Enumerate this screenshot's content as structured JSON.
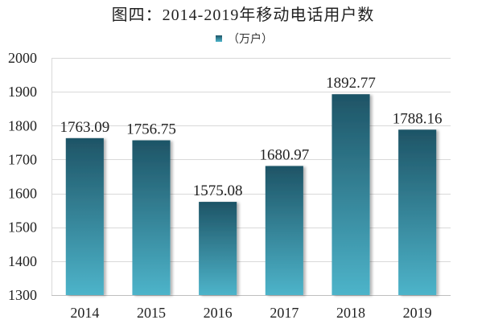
{
  "chart_data": {
    "type": "bar",
    "title": "图四：2014-2019年移动电话用户数",
    "categories": [
      "2014",
      "2015",
      "2016",
      "2017",
      "2018",
      "2019"
    ],
    "series": [
      {
        "name": "（万户）",
        "values": [
          1763.09,
          1756.75,
          1575.08,
          1680.97,
          1892.77,
          1788.16
        ]
      }
    ],
    "xlabel": "",
    "ylabel": "",
    "ylim": [
      1300,
      2000
    ],
    "yticks": [
      1300,
      1400,
      1500,
      1600,
      1700,
      1800,
      1900,
      2000
    ],
    "grid": true,
    "legend_position": "top",
    "data_labels": true
  },
  "colors": {
    "bar_top": "#1e5466",
    "bar_bottom": "#4db4ca",
    "gridline": "#d9d9d9",
    "axis": "#bfbfbf",
    "text": "#222222"
  }
}
